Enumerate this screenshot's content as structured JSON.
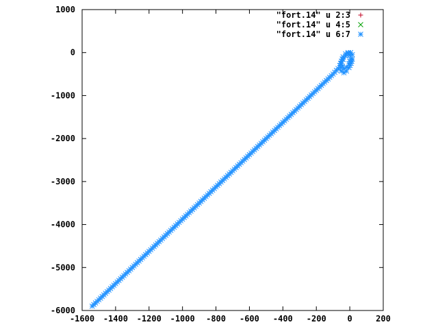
{
  "chart_data": {
    "type": "scatter",
    "title": "",
    "xlabel": "",
    "ylabel": "",
    "xlim": [
      -1600,
      200
    ],
    "ylim": [
      -6000,
      1000
    ],
    "x_ticks": [
      -1600,
      -1400,
      -1200,
      -1000,
      -800,
      -600,
      -400,
      -200,
      0,
      200
    ],
    "x_tick_labels": [
      "-1600",
      "-1400",
      "-1200",
      "-1000",
      "-800",
      "-600",
      "-400",
      "-200",
      "0",
      "200"
    ],
    "y_ticks": [
      -6000,
      -5000,
      -4000,
      -3000,
      -2000,
      -1000,
      0,
      1000
    ],
    "y_tick_labels": [
      "-6000",
      "-5000",
      "-4000",
      "-3000",
      "-2000",
      "-1000",
      "0",
      "1000"
    ],
    "grid": false,
    "legend_position": "top-right",
    "series": [
      {
        "name": "\"fort.14\" u 2:3",
        "marker": "plus",
        "color": "#c00020",
        "points": []
      },
      {
        "name": "\"fort.14\" u 4:5",
        "marker": "cross",
        "color": "#00a000",
        "points": []
      },
      {
        "name": "\"fort.14\" u 6:7",
        "marker": "star",
        "color": "#1e90ff",
        "points": [
          [
            -1540,
            -5900
          ],
          [
            -1500,
            -5750
          ],
          [
            -1460,
            -5600
          ],
          [
            -1420,
            -5450
          ],
          [
            -1380,
            -5300
          ],
          [
            -1340,
            -5150
          ],
          [
            -1300,
            -5000
          ],
          [
            -1260,
            -4850
          ],
          [
            -1220,
            -4700
          ],
          [
            -1180,
            -4550
          ],
          [
            -1140,
            -4400
          ],
          [
            -1100,
            -4250
          ],
          [
            -1060,
            -4100
          ],
          [
            -1020,
            -3950
          ],
          [
            -980,
            -3800
          ],
          [
            -940,
            -3650
          ],
          [
            -900,
            -3500
          ],
          [
            -860,
            -3350
          ],
          [
            -820,
            -3200
          ],
          [
            -780,
            -3050
          ],
          [
            -740,
            -2900
          ],
          [
            -700,
            -2750
          ],
          [
            -660,
            -2600
          ],
          [
            -620,
            -2450
          ],
          [
            -580,
            -2300
          ],
          [
            -540,
            -2150
          ],
          [
            -500,
            -2000
          ],
          [
            -460,
            -1850
          ],
          [
            -420,
            -1700
          ],
          [
            -380,
            -1550
          ],
          [
            -340,
            -1400
          ],
          [
            -300,
            -1250
          ],
          [
            -260,
            -1100
          ],
          [
            -220,
            -950
          ],
          [
            -180,
            -800
          ],
          [
            -140,
            -650
          ],
          [
            -100,
            -500
          ],
          [
            -70,
            -370
          ],
          [
            -60,
            -300
          ],
          [
            -50,
            -200
          ],
          [
            -40,
            -100
          ],
          [
            -25,
            -30
          ],
          [
            -10,
            0
          ],
          [
            5,
            0
          ],
          [
            15,
            -50
          ],
          [
            15,
            -150
          ],
          [
            8,
            -250
          ],
          [
            -5,
            -350
          ],
          [
            -20,
            -430
          ],
          [
            -35,
            -470
          ],
          [
            -50,
            -430
          ],
          [
            -55,
            -350
          ],
          [
            -50,
            -250
          ],
          [
            -40,
            -160
          ],
          [
            -25,
            -80
          ],
          [
            -10,
            -20
          ],
          [
            0,
            -60
          ],
          [
            5,
            -150
          ],
          [
            -5,
            -260
          ],
          [
            -20,
            -340
          ],
          [
            -35,
            -380
          ],
          [
            -45,
            -320
          ]
        ]
      }
    ]
  }
}
